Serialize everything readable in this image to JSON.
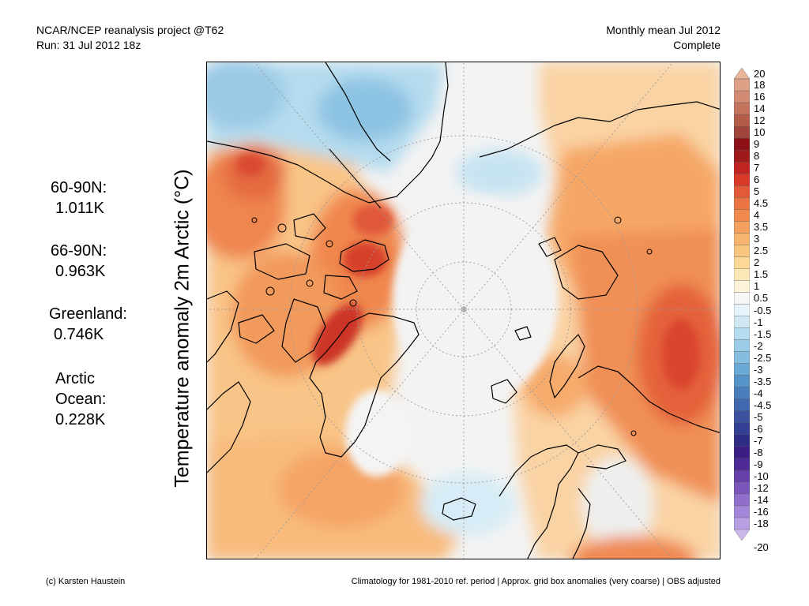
{
  "header": {
    "left_line1": "NCAR/NCEP reanalysis project @T62",
    "left_line2": "Run: 31 Jul 2012 18z",
    "right_line1": "Monthly mean Jul 2012",
    "right_line2": "Complete"
  },
  "stats": [
    {
      "label": "60-90N:",
      "value": "1.011K"
    },
    {
      "label": "66-90N:",
      "value": "0.963K"
    },
    {
      "label": "Greenland:",
      "value": "0.746K"
    },
    {
      "label": "Arctic Ocean:",
      "label_line1": "Arctic",
      "label_line2": "Ocean:",
      "value": "0.228K"
    }
  ],
  "axis_label": "Temperature anomaly 2m Arctic (°C)",
  "colorbar": {
    "labels": [
      "20",
      "18",
      "16",
      "14",
      "12",
      "10",
      "9",
      "8",
      "7",
      "6",
      "5",
      "4.5",
      "4",
      "3.5",
      "3",
      "2.5",
      "2",
      "1.5",
      "1",
      "0.5",
      "-0.5",
      "-1",
      "-1.5",
      "-2",
      "-2.5",
      "-3",
      "-3.5",
      "-4",
      "-4.5",
      "-5",
      "-6",
      "-7",
      "-8",
      "-9",
      "-10",
      "-12",
      "-14",
      "-16",
      "-18",
      "-20"
    ],
    "colors": [
      "#e8b59a",
      "#dea188",
      "#d28b72",
      "#c4735c",
      "#b45c48",
      "#a0453a",
      "#8c1016",
      "#a01a1c",
      "#c02420",
      "#d83a2a",
      "#e35a38",
      "#ec7442",
      "#f08a4e",
      "#f4a05e",
      "#f7b46e",
      "#f9c680",
      "#fbd896",
      "#fce8b4",
      "#fdf3d8",
      "#f6f6f6",
      "#e6f3fa",
      "#cfe8f4",
      "#b6dcef",
      "#9ccde8",
      "#84bde0",
      "#6aa9d6",
      "#5593c8",
      "#4a7dbb",
      "#3f68ae",
      "#3a52a0",
      "#333f92",
      "#2f2c86",
      "#3b1e84",
      "#4d2a95",
      "#6440a8",
      "#7a56bb",
      "#8f6ecc",
      "#a486d8",
      "#b89ee2",
      "#ccb8ec"
    ]
  },
  "colors": {
    "land_outline": "#000000",
    "grid": "#9a9a9a"
  },
  "footer": {
    "left": "(c) Karsten Haustein",
    "right": "Climatology for 1981-2010 ref. period | Approx. grid box anomalies (very coarse) | OBS adjusted"
  }
}
